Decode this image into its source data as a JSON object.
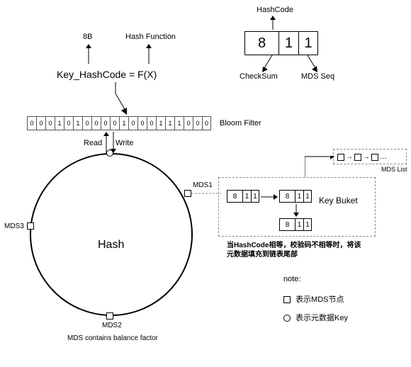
{
  "top": {
    "hashcode_label": "HashCode",
    "checksum_label": "CheckSum",
    "mdsseq_label": "MDS Seq",
    "eightb_label": "8B",
    "hashfn_label": "Hash Function",
    "formula": "Key_HashCode = F(X)",
    "triplet": {
      "v0": "8",
      "v1": "1",
      "v2": "1"
    }
  },
  "bloom": {
    "label": "Bloom Filter",
    "bits": [
      "0",
      "0",
      "0",
      "1",
      "0",
      "1",
      "0",
      "0",
      "0",
      "0",
      "1",
      "0",
      "0",
      "0",
      "1",
      "1",
      "1",
      "0",
      "0",
      "0"
    ],
    "read": "Read",
    "write": "Write"
  },
  "ring": {
    "center_label": "Hash",
    "mds1": "MDS1",
    "mds2": "MDS2",
    "mds3": "MDS3",
    "balance_label": "MDS contains balance factor"
  },
  "bucket": {
    "title": "Key  Buket",
    "cells": {
      "a": {
        "v0": "8",
        "v1": "1",
        "v2": "1"
      },
      "b": {
        "v0": "8",
        "v1": "1",
        "v2": "1"
      },
      "c": {
        "v0": "8",
        "v1": "1",
        "v2": "1"
      }
    },
    "note_text": "当HashCode相等，校验码不相等时，将该元数据填充到链表尾部"
  },
  "mdslist": {
    "label": "MDS List",
    "ellipsis": "…"
  },
  "legend": {
    "title": "note:",
    "mds_node": "表示MDS节点",
    "meta_key": "表示元数据Key"
  },
  "style": {
    "bg": "#ffffff",
    "line": "#000000",
    "dash": "#888888",
    "triplet_font_big": 20
  }
}
